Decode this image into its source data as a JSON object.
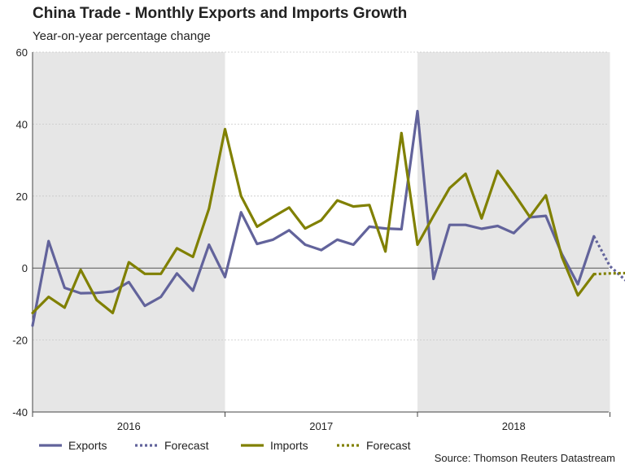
{
  "title": "China Trade - Monthly Exports and Imports Growth",
  "subtitle": "Year-on-year percentage change",
  "source": "Source: Thomson Reuters Datastream",
  "colors": {
    "exports": "#62639b",
    "imports": "#808000",
    "shade": "#e6e6e6",
    "zero": "#555555",
    "grid": "#c8c8c8"
  },
  "chart_data": {
    "type": "line",
    "title": "China Trade - Monthly Exports and Imports Growth",
    "subtitle": "Year-on-year percentage change",
    "ylim": [
      -40,
      60
    ],
    "yticks": [
      60,
      40,
      20,
      0,
      -20,
      -40
    ],
    "year_labels": [
      "2016",
      "2017",
      "2018"
    ],
    "shaded_years": [
      "2016",
      "2018"
    ],
    "grid": true,
    "legend_position": "bottom",
    "months": [
      "2016-01",
      "2016-02",
      "2016-03",
      "2016-04",
      "2016-05",
      "2016-06",
      "2016-07",
      "2016-08",
      "2016-09",
      "2016-10",
      "2016-11",
      "2016-12",
      "2017-01",
      "2017-02",
      "2017-03",
      "2017-04",
      "2017-05",
      "2017-06",
      "2017-07",
      "2017-08",
      "2017-09",
      "2017-10",
      "2017-11",
      "2017-12",
      "2018-01",
      "2018-02",
      "2018-03",
      "2018-04",
      "2018-05",
      "2018-06",
      "2018-07",
      "2018-08",
      "2018-09",
      "2018-10",
      "2018-11",
      "2018-12",
      "2019-01",
      "2019-02"
    ],
    "series": [
      {
        "name": "Exports",
        "style": "solid",
        "values": [
          -16.0,
          7.5,
          -5.5,
          -7.0,
          -6.9,
          -6.5,
          -3.9,
          -10.5,
          -8.0,
          -1.5,
          -6.3,
          6.5,
          -2.5,
          15.5,
          6.7,
          7.9,
          10.5,
          6.5,
          5.0,
          7.9,
          6.5,
          11.5,
          11.0,
          10.8,
          43.6,
          -3.0,
          12.0,
          12.0,
          10.9,
          11.7,
          9.7,
          14.1,
          14.5,
          3.9,
          -4.5,
          8.8
        ]
      },
      {
        "name": "Forecast",
        "style": "dotted",
        "start_index": 35,
        "values": [
          8.8,
          0.5,
          -3.5
        ]
      },
      {
        "name": "Imports",
        "style": "solid",
        "values": [
          -12.5,
          -8.0,
          -11.0,
          -0.5,
          -8.9,
          -12.5,
          1.6,
          -1.6,
          -1.6,
          5.5,
          3.1,
          16.5,
          38.6,
          20.0,
          11.5,
          14.2,
          16.8,
          11.0,
          13.3,
          18.8,
          17.1,
          17.5,
          4.6,
          37.5,
          6.5,
          14.5,
          22.2,
          26.2,
          13.8,
          27.0,
          20.8,
          14.2,
          20.2,
          3.1,
          -7.6,
          -1.7
        ]
      },
      {
        "name": "Forecast",
        "style": "dotted",
        "start_index": 35,
        "values": [
          -1.7,
          -1.5,
          -1.4
        ]
      }
    ]
  }
}
